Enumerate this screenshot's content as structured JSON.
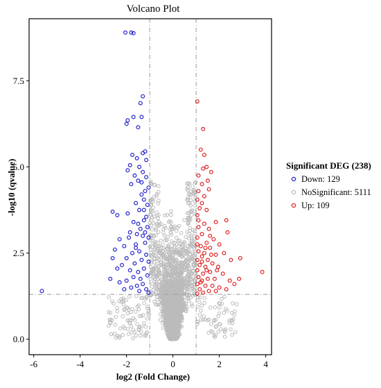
{
  "chart_data": {
    "type": "scatter",
    "title": "Volcano Plot",
    "xlabel": "log2 (Fold Change)",
    "ylabel": "-log10 (qvalue)",
    "xlim": [
      -6.2,
      4.25
    ],
    "ylim": [
      -0.45,
      9.3
    ],
    "xticks": [
      -6,
      -4,
      -2,
      0,
      2,
      4
    ],
    "yticks": [
      0.0,
      2.5,
      5.0,
      7.5
    ],
    "ytick_labels": [
      "0.0",
      "2.5",
      "5.0",
      "7.5"
    ],
    "threshold_lines": {
      "x": [
        -1,
        1
      ],
      "y": [
        1.3
      ]
    },
    "legend": {
      "title": "Significant DEG (238)",
      "position": "right"
    },
    "series": [
      {
        "name": "Down: 129",
        "color": "#2222cc",
        "points": [
          [
            -2.05,
            8.9
          ],
          [
            -1.8,
            8.9
          ],
          [
            -1.7,
            8.88
          ],
          [
            -1.3,
            7.05
          ],
          [
            -1.4,
            6.85
          ],
          [
            -1.7,
            6.45
          ],
          [
            -1.35,
            6.45
          ],
          [
            -2.0,
            6.25
          ],
          [
            -1.95,
            6.35
          ],
          [
            -1.5,
            6.15
          ],
          [
            -1.2,
            5.45
          ],
          [
            -1.3,
            5.4
          ],
          [
            -1.75,
            5.35
          ],
          [
            -1.55,
            5.25
          ],
          [
            -1.15,
            5.2
          ],
          [
            -1.85,
            5.05
          ],
          [
            -1.95,
            4.9
          ],
          [
            -1.45,
            5.0
          ],
          [
            -1.65,
            4.75
          ],
          [
            -1.3,
            4.85
          ],
          [
            -1.2,
            4.3
          ],
          [
            -1.5,
            4.6
          ],
          [
            -1.25,
            4.05
          ],
          [
            -1.8,
            4.5
          ],
          [
            -1.1,
            3.9
          ],
          [
            -1.35,
            4.2
          ],
          [
            -1.6,
            3.95
          ],
          [
            -1.45,
            3.75
          ],
          [
            -1.15,
            3.55
          ],
          [
            -1.95,
            3.65
          ],
          [
            -2.6,
            3.7
          ],
          [
            -2.4,
            3.6
          ],
          [
            -1.7,
            3.4
          ],
          [
            -1.25,
            3.45
          ],
          [
            -1.4,
            3.2
          ],
          [
            -1.1,
            3.25
          ],
          [
            -1.55,
            3.05
          ],
          [
            -1.3,
            3.0
          ],
          [
            -1.2,
            2.8
          ],
          [
            -1.6,
            2.75
          ],
          [
            -1.9,
            2.95
          ],
          [
            -2.1,
            2.7
          ],
          [
            -2.3,
            2.9
          ],
          [
            -2.5,
            2.6
          ],
          [
            -1.75,
            2.5
          ],
          [
            -1.45,
            2.55
          ],
          [
            -1.15,
            2.45
          ],
          [
            -1.35,
            2.3
          ],
          [
            -1.05,
            2.25
          ],
          [
            -1.65,
            2.2
          ],
          [
            -2.0,
            2.35
          ],
          [
            -2.2,
            2.15
          ],
          [
            -2.6,
            2.35
          ],
          [
            -2.4,
            2.05
          ],
          [
            -1.85,
            2.0
          ],
          [
            -1.5,
            1.95
          ],
          [
            -1.25,
            2.05
          ],
          [
            -1.1,
            1.85
          ],
          [
            -1.4,
            1.75
          ],
          [
            -1.7,
            1.8
          ],
          [
            -2.0,
            1.7
          ],
          [
            -2.3,
            1.65
          ],
          [
            -2.7,
            1.75
          ],
          [
            -1.55,
            1.55
          ],
          [
            -1.3,
            1.6
          ],
          [
            -1.15,
            1.45
          ],
          [
            -1.8,
            1.5
          ],
          [
            -2.1,
            1.45
          ],
          [
            -1.45,
            1.4
          ],
          [
            -1.05,
            1.35
          ],
          [
            -5.65,
            1.4
          ],
          [
            -1.6,
            2.65
          ],
          [
            -1.2,
            3.1
          ],
          [
            -1.5,
            3.35
          ],
          [
            -1.85,
            3.1
          ],
          [
            -1.05,
            4.4
          ],
          [
            -1.35,
            4.55
          ],
          [
            -1.15,
            4.7
          ],
          [
            -1.25,
            3.75
          ],
          [
            -1.05,
            2.95
          ]
        ]
      },
      {
        "name": "NoSignificant: 5111",
        "color": "#bbbbbb",
        "points": []
      },
      {
        "name": "Up: 109",
        "color": "#dd2222",
        "points": [
          [
            1.05,
            6.9
          ],
          [
            1.3,
            6.1
          ],
          [
            1.2,
            5.5
          ],
          [
            1.35,
            5.35
          ],
          [
            1.45,
            5.0
          ],
          [
            1.65,
            4.85
          ],
          [
            1.3,
            4.95
          ],
          [
            1.5,
            4.6
          ],
          [
            1.1,
            4.75
          ],
          [
            1.25,
            4.5
          ],
          [
            1.55,
            4.35
          ],
          [
            1.1,
            4.3
          ],
          [
            1.35,
            4.15
          ],
          [
            1.05,
            4.05
          ],
          [
            1.25,
            3.95
          ],
          [
            1.15,
            3.8
          ],
          [
            1.45,
            3.75
          ],
          [
            1.05,
            3.6
          ],
          [
            2.3,
            3.45
          ],
          [
            1.85,
            3.4
          ],
          [
            1.35,
            3.35
          ],
          [
            1.1,
            3.25
          ],
          [
            1.55,
            3.2
          ],
          [
            2.35,
            3.1
          ],
          [
            1.25,
            3.05
          ],
          [
            1.05,
            2.95
          ],
          [
            1.75,
            2.9
          ],
          [
            1.45,
            2.8
          ],
          [
            2.0,
            2.75
          ],
          [
            1.2,
            2.7
          ],
          [
            1.6,
            2.65
          ],
          [
            1.1,
            2.55
          ],
          [
            1.35,
            2.5
          ],
          [
            1.85,
            2.45
          ],
          [
            2.2,
            2.5
          ],
          [
            1.25,
            2.4
          ],
          [
            1.05,
            2.3
          ],
          [
            1.5,
            2.3
          ],
          [
            2.5,
            2.3
          ],
          [
            1.7,
            2.2
          ],
          [
            1.15,
            2.15
          ],
          [
            1.4,
            2.1
          ],
          [
            2.9,
            2.35
          ],
          [
            1.95,
            2.1
          ],
          [
            1.05,
            2.0
          ],
          [
            1.6,
            1.95
          ],
          [
            1.3,
            1.9
          ],
          [
            2.15,
            1.9
          ],
          [
            1.1,
            1.8
          ],
          [
            1.5,
            1.75
          ],
          [
            1.8,
            1.75
          ],
          [
            1.25,
            1.7
          ],
          [
            2.45,
            1.7
          ],
          [
            1.05,
            1.6
          ],
          [
            1.4,
            1.55
          ],
          [
            1.7,
            1.55
          ],
          [
            2.0,
            1.5
          ],
          [
            1.15,
            1.45
          ],
          [
            1.55,
            1.4
          ],
          [
            1.85,
            1.4
          ],
          [
            2.3,
            1.45
          ],
          [
            2.65,
            1.6
          ],
          [
            1.3,
            1.35
          ],
          [
            1.05,
            1.32
          ],
          [
            3.85,
            1.95
          ],
          [
            2.85,
            1.75
          ],
          [
            1.2,
            1.65
          ],
          [
            1.4,
            2.65
          ],
          [
            1.6,
            3.0
          ],
          [
            1.1,
            3.45
          ],
          [
            1.45,
            2.0
          ],
          [
            1.9,
            2.0
          ],
          [
            1.25,
            2.25
          ],
          [
            1.65,
            2.45
          ],
          [
            1.05,
            2.75
          ]
        ]
      }
    ]
  }
}
